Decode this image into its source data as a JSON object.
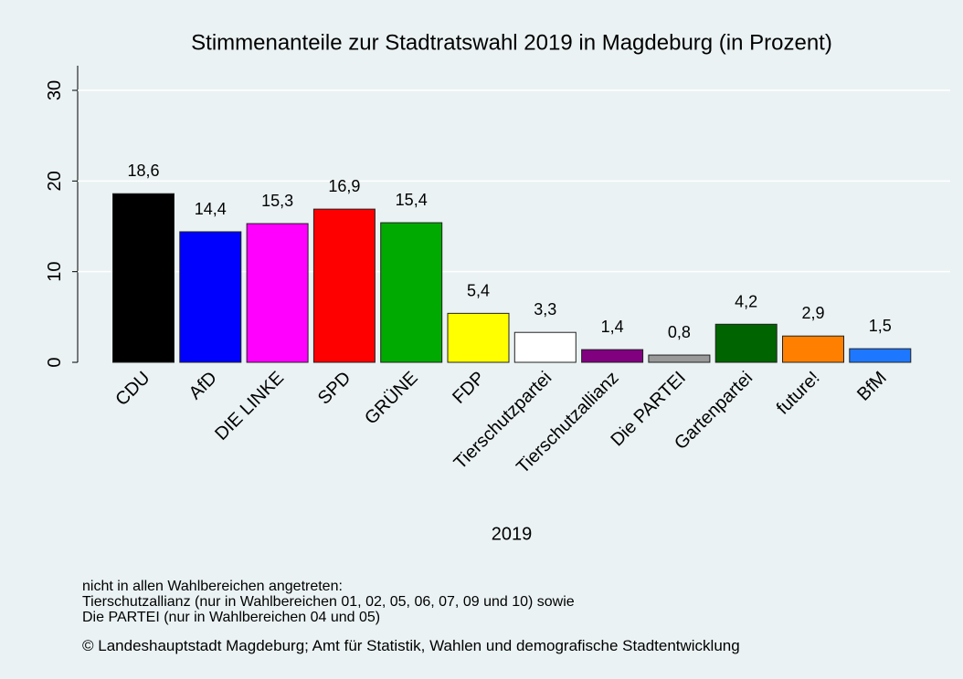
{
  "chart_data": {
    "type": "bar",
    "title": "Stimmenanteile zur Stadtratswahl 2019 in Magdeburg (in Prozent)",
    "xlabel": "2019",
    "categories": [
      "CDU",
      "AfD",
      "DIE LINKE",
      "SPD",
      "GRÜNE",
      "FDP",
      "Tierschutzpartei",
      "Tierschutzallianz",
      "Die PARTEI",
      "Gartenpartei",
      "future!",
      "BfM"
    ],
    "values": [
      18.6,
      14.4,
      15.3,
      16.9,
      15.4,
      5.4,
      3.3,
      1.4,
      0.8,
      4.2,
      2.9,
      1.5
    ],
    "value_labels": [
      "18,6",
      "14,4",
      "15,3",
      "16,9",
      "15,4",
      "5,4",
      "3,3",
      "1,4",
      "0,8",
      "4,2",
      "2,9",
      "1,5"
    ],
    "colors": [
      "#000000",
      "#0000ff",
      "#ff00ff",
      "#ff0000",
      "#00aa00",
      "#ffff00",
      "#ffffff",
      "#800080",
      "#999999",
      "#006400",
      "#ff8000",
      "#1e78ff"
    ],
    "ylim": [
      0,
      30
    ],
    "yticks": [
      0,
      10,
      20,
      30
    ],
    "grid": true,
    "notes": [
      "nicht in allen Wahlbereichen angetreten:",
      "Tierschutzallianz (nur in Wahlbereichen 01, 02, 05, 06, 07, 09 und 10) sowie",
      "Die PARTEI (nur in Wahlbereichen 04 und 05)"
    ],
    "source": "© Landeshauptstadt Magdeburg; Amt für Statistik, Wahlen und demografische Stadtentwicklung"
  }
}
